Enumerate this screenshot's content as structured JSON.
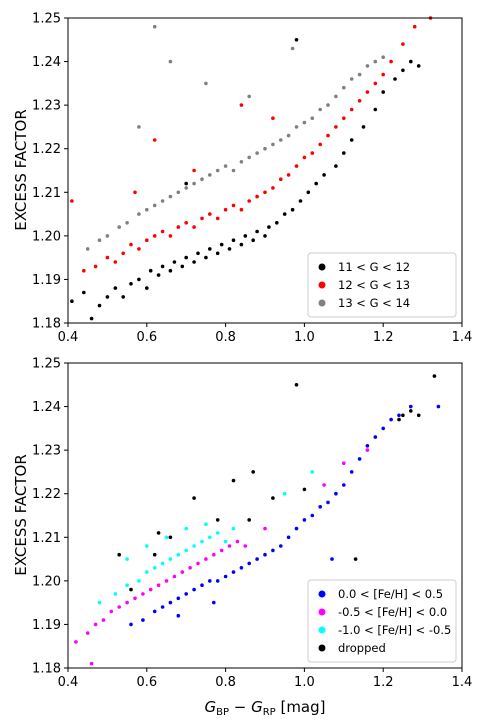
{
  "chart_data": [
    {
      "type": "scatter",
      "ylabel": "EXCESS FACTOR",
      "xlim": [
        0.4,
        1.4
      ],
      "ylim": [
        1.18,
        1.25
      ],
      "xticks": [
        "0.4",
        "0.6",
        "0.8",
        "1.0",
        "1.2",
        "1.4"
      ],
      "yticks": [
        "1.18",
        "1.19",
        "1.20",
        "1.21",
        "1.22",
        "1.23",
        "1.24",
        "1.25"
      ],
      "legend_position": "bottom-right",
      "series": [
        {
          "name": "11 < G < 12",
          "color": "#000000",
          "points": [
            [
              0.41,
              1.185
            ],
            [
              0.44,
              1.187
            ],
            [
              0.46,
              1.181
            ],
            [
              0.48,
              1.184
            ],
            [
              0.5,
              1.186
            ],
            [
              0.52,
              1.188
            ],
            [
              0.54,
              1.186
            ],
            [
              0.56,
              1.189
            ],
            [
              0.58,
              1.19
            ],
            [
              0.6,
              1.188
            ],
            [
              0.61,
              1.192
            ],
            [
              0.63,
              1.191
            ],
            [
              0.64,
              1.193
            ],
            [
              0.66,
              1.192
            ],
            [
              0.67,
              1.194
            ],
            [
              0.69,
              1.193
            ],
            [
              0.7,
              1.195
            ],
            [
              0.72,
              1.194
            ],
            [
              0.73,
              1.196
            ],
            [
              0.75,
              1.195
            ],
            [
              0.76,
              1.197
            ],
            [
              0.78,
              1.196
            ],
            [
              0.79,
              1.198
            ],
            [
              0.81,
              1.197
            ],
            [
              0.82,
              1.199
            ],
            [
              0.84,
              1.198
            ],
            [
              0.85,
              1.2
            ],
            [
              0.87,
              1.199
            ],
            [
              0.88,
              1.201
            ],
            [
              0.9,
              1.2
            ],
            [
              0.91,
              1.202
            ],
            [
              0.93,
              1.203
            ],
            [
              0.95,
              1.205
            ],
            [
              0.97,
              1.206
            ],
            [
              0.99,
              1.208
            ],
            [
              1.01,
              1.21
            ],
            [
              1.03,
              1.212
            ],
            [
              1.05,
              1.214
            ],
            [
              1.08,
              1.216
            ],
            [
              1.1,
              1.219
            ],
            [
              1.12,
              1.222
            ],
            [
              1.15,
              1.225
            ],
            [
              1.18,
              1.229
            ],
            [
              1.2,
              1.233
            ],
            [
              1.23,
              1.236
            ],
            [
              1.25,
              1.238
            ],
            [
              1.27,
              1.24
            ],
            [
              1.29,
              1.239
            ],
            [
              0.98,
              1.245
            ],
            [
              0.7,
              1.212
            ]
          ]
        },
        {
          "name": "12 < G < 13",
          "color": "#ff0000",
          "points": [
            [
              0.41,
              1.208
            ],
            [
              0.44,
              1.192
            ],
            [
              0.47,
              1.193
            ],
            [
              0.5,
              1.195
            ],
            [
              0.52,
              1.194
            ],
            [
              0.54,
              1.196
            ],
            [
              0.56,
              1.198
            ],
            [
              0.58,
              1.197
            ],
            [
              0.6,
              1.199
            ],
            [
              0.62,
              1.2
            ],
            [
              0.64,
              1.201
            ],
            [
              0.66,
              1.2
            ],
            [
              0.68,
              1.202
            ],
            [
              0.7,
              1.203
            ],
            [
              0.72,
              1.202
            ],
            [
              0.74,
              1.204
            ],
            [
              0.76,
              1.205
            ],
            [
              0.78,
              1.204
            ],
            [
              0.8,
              1.206
            ],
            [
              0.82,
              1.207
            ],
            [
              0.84,
              1.206
            ],
            [
              0.86,
              1.208
            ],
            [
              0.88,
              1.209
            ],
            [
              0.9,
              1.21
            ],
            [
              0.92,
              1.211
            ],
            [
              0.94,
              1.213
            ],
            [
              0.96,
              1.214
            ],
            [
              0.98,
              1.216
            ],
            [
              1.0,
              1.218
            ],
            [
              1.02,
              1.219
            ],
            [
              1.04,
              1.221
            ],
            [
              1.06,
              1.223
            ],
            [
              1.08,
              1.225
            ],
            [
              1.1,
              1.227
            ],
            [
              1.12,
              1.229
            ],
            [
              1.14,
              1.231
            ],
            [
              1.16,
              1.233
            ],
            [
              1.18,
              1.235
            ],
            [
              1.2,
              1.237
            ],
            [
              1.22,
              1.24
            ],
            [
              1.25,
              1.244
            ],
            [
              1.28,
              1.248
            ],
            [
              1.32,
              1.25
            ],
            [
              0.62,
              1.222
            ],
            [
              0.72,
              1.215
            ],
            [
              0.84,
              1.23
            ],
            [
              0.92,
              1.227
            ],
            [
              0.57,
              1.21
            ]
          ]
        },
        {
          "name": "13 < G < 14",
          "color": "#808080",
          "points": [
            [
              0.45,
              1.197
            ],
            [
              0.48,
              1.199
            ],
            [
              0.5,
              1.2
            ],
            [
              0.53,
              1.202
            ],
            [
              0.55,
              1.203
            ],
            [
              0.58,
              1.205
            ],
            [
              0.6,
              1.206
            ],
            [
              0.62,
              1.207
            ],
            [
              0.64,
              1.208
            ],
            [
              0.66,
              1.209
            ],
            [
              0.68,
              1.21
            ],
            [
              0.7,
              1.211
            ],
            [
              0.72,
              1.212
            ],
            [
              0.74,
              1.213
            ],
            [
              0.76,
              1.214
            ],
            [
              0.78,
              1.215
            ],
            [
              0.8,
              1.216
            ],
            [
              0.82,
              1.215
            ],
            [
              0.84,
              1.217
            ],
            [
              0.86,
              1.218
            ],
            [
              0.88,
              1.219
            ],
            [
              0.9,
              1.22
            ],
            [
              0.92,
              1.221
            ],
            [
              0.94,
              1.222
            ],
            [
              0.96,
              1.223
            ],
            [
              0.98,
              1.225
            ],
            [
              1.0,
              1.226
            ],
            [
              1.02,
              1.227
            ],
            [
              1.04,
              1.229
            ],
            [
              1.06,
              1.23
            ],
            [
              1.08,
              1.232
            ],
            [
              1.1,
              1.234
            ],
            [
              1.12,
              1.236
            ],
            [
              1.14,
              1.237
            ],
            [
              1.16,
              1.239
            ],
            [
              1.18,
              1.24
            ],
            [
              1.2,
              1.241
            ],
            [
              0.62,
              1.248
            ],
            [
              0.66,
              1.24
            ],
            [
              0.75,
              1.235
            ],
            [
              0.86,
              1.232
            ],
            [
              0.97,
              1.243
            ],
            [
              0.58,
              1.225
            ]
          ]
        }
      ]
    },
    {
      "type": "scatter",
      "ylabel": "EXCESS FACTOR",
      "xlabel_main": "G",
      "xlabel_sub1": "BP",
      "xlabel_op": " − ",
      "xlabel_main2": "G",
      "xlabel_sub2": "RP",
      "xlabel_unit": " [mag]",
      "xlim": [
        0.4,
        1.4
      ],
      "ylim": [
        1.18,
        1.25
      ],
      "xticks": [
        "0.4",
        "0.6",
        "0.8",
        "1.0",
        "1.2",
        "1.4"
      ],
      "yticks": [
        "1.18",
        "1.19",
        "1.20",
        "1.21",
        "1.22",
        "1.23",
        "1.24",
        "1.25"
      ],
      "legend_position": "bottom-right",
      "series": [
        {
          "name": "0.0 < [Fe/H] < 0.5",
          "color": "#0000ff",
          "points": [
            [
              0.56,
              1.19
            ],
            [
              0.59,
              1.191
            ],
            [
              0.62,
              1.193
            ],
            [
              0.64,
              1.194
            ],
            [
              0.66,
              1.195
            ],
            [
              0.68,
              1.196
            ],
            [
              0.7,
              1.197
            ],
            [
              0.72,
              1.198
            ],
            [
              0.74,
              1.199
            ],
            [
              0.76,
              1.2
            ],
            [
              0.78,
              1.2
            ],
            [
              0.8,
              1.201
            ],
            [
              0.82,
              1.202
            ],
            [
              0.84,
              1.203
            ],
            [
              0.86,
              1.204
            ],
            [
              0.88,
              1.205
            ],
            [
              0.9,
              1.206
            ],
            [
              0.92,
              1.207
            ],
            [
              0.94,
              1.208
            ],
            [
              0.96,
              1.21
            ],
            [
              0.98,
              1.212
            ],
            [
              1.0,
              1.214
            ],
            [
              1.02,
              1.215
            ],
            [
              1.04,
              1.217
            ],
            [
              1.06,
              1.218
            ],
            [
              1.08,
              1.22
            ],
            [
              1.1,
              1.222
            ],
            [
              1.12,
              1.225
            ],
            [
              1.14,
              1.228
            ],
            [
              1.16,
              1.231
            ],
            [
              1.18,
              1.233
            ],
            [
              1.2,
              1.235
            ],
            [
              1.22,
              1.237
            ],
            [
              1.24,
              1.238
            ],
            [
              1.27,
              1.24
            ],
            [
              1.34,
              1.24
            ],
            [
              1.07,
              1.205
            ],
            [
              0.77,
              1.195
            ],
            [
              0.68,
              1.192
            ]
          ]
        },
        {
          "name": "-0.5 < [Fe/H] < 0.0",
          "color": "#ff00ff",
          "points": [
            [
              0.42,
              1.186
            ],
            [
              0.45,
              1.188
            ],
            [
              0.47,
              1.19
            ],
            [
              0.49,
              1.191
            ],
            [
              0.51,
              1.193
            ],
            [
              0.53,
              1.194
            ],
            [
              0.55,
              1.195
            ],
            [
              0.57,
              1.196
            ],
            [
              0.59,
              1.197
            ],
            [
              0.61,
              1.198
            ],
            [
              0.63,
              1.199
            ],
            [
              0.65,
              1.2
            ],
            [
              0.67,
              1.201
            ],
            [
              0.69,
              1.202
            ],
            [
              0.71,
              1.203
            ],
            [
              0.73,
              1.204
            ],
            [
              0.75,
              1.205
            ],
            [
              0.77,
              1.206
            ],
            [
              0.79,
              1.207
            ],
            [
              0.81,
              1.208
            ],
            [
              0.83,
              1.209
            ],
            [
              0.85,
              1.208
            ],
            [
              0.9,
              1.212
            ],
            [
              1.05,
              1.222
            ],
            [
              1.1,
              1.227
            ],
            [
              1.16,
              1.23
            ],
            [
              0.46,
              1.181
            ]
          ]
        },
        {
          "name": "-1.0 < [Fe/H] < -0.5",
          "color": "#00ffff",
          "points": [
            [
              0.48,
              1.195
            ],
            [
              0.52,
              1.197
            ],
            [
              0.55,
              1.199
            ],
            [
              0.58,
              1.2
            ],
            [
              0.6,
              1.202
            ],
            [
              0.62,
              1.203
            ],
            [
              0.64,
              1.204
            ],
            [
              0.66,
              1.205
            ],
            [
              0.68,
              1.206
            ],
            [
              0.7,
              1.207
            ],
            [
              0.72,
              1.208
            ],
            [
              0.74,
              1.209
            ],
            [
              0.76,
              1.21
            ],
            [
              0.78,
              1.211
            ],
            [
              0.8,
              1.209
            ],
            [
              0.82,
              1.212
            ],
            [
              0.7,
              1.212
            ],
            [
              0.75,
              1.213
            ],
            [
              0.65,
              1.21
            ],
            [
              0.6,
              1.208
            ],
            [
              0.55,
              1.205
            ],
            [
              0.95,
              1.22
            ],
            [
              1.02,
              1.225
            ]
          ]
        },
        {
          "name": "dropped",
          "color": "#000000",
          "points": [
            [
              0.98,
              1.245
            ],
            [
              1.33,
              1.247
            ],
            [
              1.25,
              1.238
            ],
            [
              1.27,
              1.239
            ],
            [
              1.24,
              1.237
            ],
            [
              1.29,
              1.238
            ],
            [
              0.87,
              1.225
            ],
            [
              0.82,
              1.223
            ],
            [
              0.72,
              1.219
            ],
            [
              0.63,
              1.211
            ],
            [
              0.66,
              1.21
            ],
            [
              0.62,
              1.206
            ],
            [
              0.78,
              1.214
            ],
            [
              0.86,
              1.214
            ],
            [
              0.92,
              1.219
            ],
            [
              1.13,
              1.205
            ],
            [
              1.0,
              1.221
            ],
            [
              0.56,
              1.198
            ],
            [
              0.53,
              1.206
            ]
          ]
        }
      ]
    }
  ]
}
